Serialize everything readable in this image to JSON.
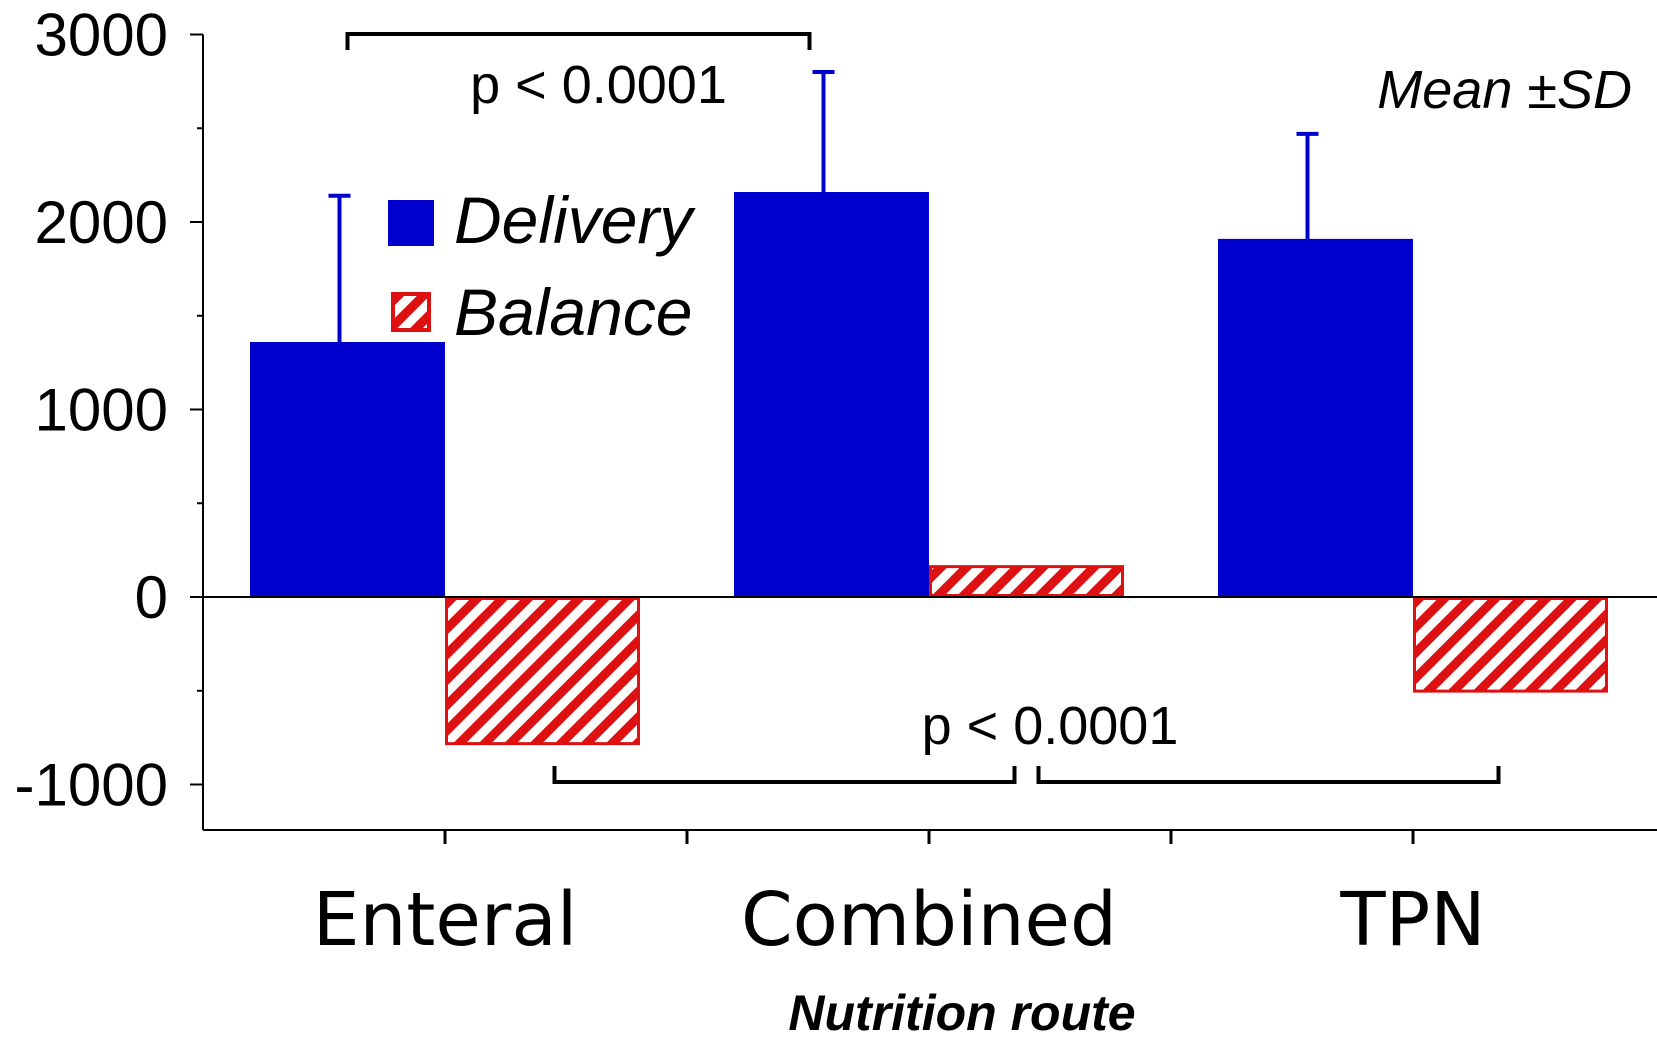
{
  "chart_data": {
    "type": "bar",
    "title": "",
    "xlabel": "Nutrition route",
    "ylabel": "",
    "ylim": [
      -1250,
      3000
    ],
    "yticks": [
      -1000,
      0,
      1000,
      2000,
      3000
    ],
    "yticklabels": [
      "-1000",
      "0",
      "1000",
      "2000",
      "3000"
    ],
    "categories": [
      "Enteral",
      "Combined",
      "TPN"
    ],
    "series": [
      {
        "name": "Delivery",
        "values": [
          1360,
          2160,
          1910
        ],
        "error_sd": [
          780,
          640,
          560
        ],
        "color": "#0000cc",
        "pattern": "solid"
      },
      {
        "name": "Balance",
        "values": [
          -790,
          170,
          -510
        ],
        "color": "#dd1111",
        "pattern": "hatched"
      }
    ],
    "legend": {
      "placement": "upper-left",
      "entries": [
        "Delivery",
        "Balance"
      ]
    },
    "annotations": {
      "mean_note": "Mean ±SD",
      "top_bracket": {
        "label": "p < 0.0001",
        "from": "Enteral Delivery",
        "to": "Combined Delivery"
      },
      "bottom_brackets": {
        "label": "p < 0.0001",
        "pairs": [
          [
            "Enteral Balance",
            "Combined Balance"
          ],
          [
            "Combined Balance",
            "TPN Balance"
          ]
        ]
      }
    },
    "grid": false
  }
}
